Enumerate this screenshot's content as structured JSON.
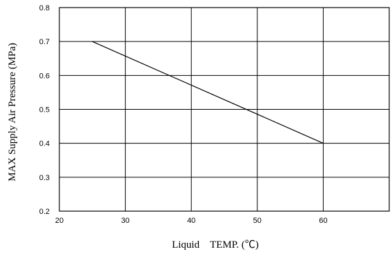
{
  "chart_data": {
    "type": "line",
    "title": "",
    "xlabel": "Liquid　TEMP. (℃)",
    "ylabel": "MAX Supply Air Pressure (MPa)",
    "xlim": [
      20,
      70
    ],
    "ylim": [
      0.2,
      0.8
    ],
    "xticks": [
      20,
      30,
      40,
      50,
      60
    ],
    "xtick_labels": [
      "20",
      "30",
      "40",
      "50",
      "60"
    ],
    "yticks": [
      0.2,
      0.3,
      0.4,
      0.5,
      0.6,
      0.7,
      0.8
    ],
    "ytick_labels": [
      "0.2",
      "0.3",
      "0.4",
      "0.5",
      "0.6",
      "0.7",
      "0.8"
    ],
    "grid": true,
    "legend": "none",
    "series": [
      {
        "x": [
          25,
          60
        ],
        "y": [
          0.7,
          0.4
        ]
      }
    ],
    "colors": {
      "line": "#000000",
      "grid": "#000000",
      "background": "#ffffff"
    }
  }
}
